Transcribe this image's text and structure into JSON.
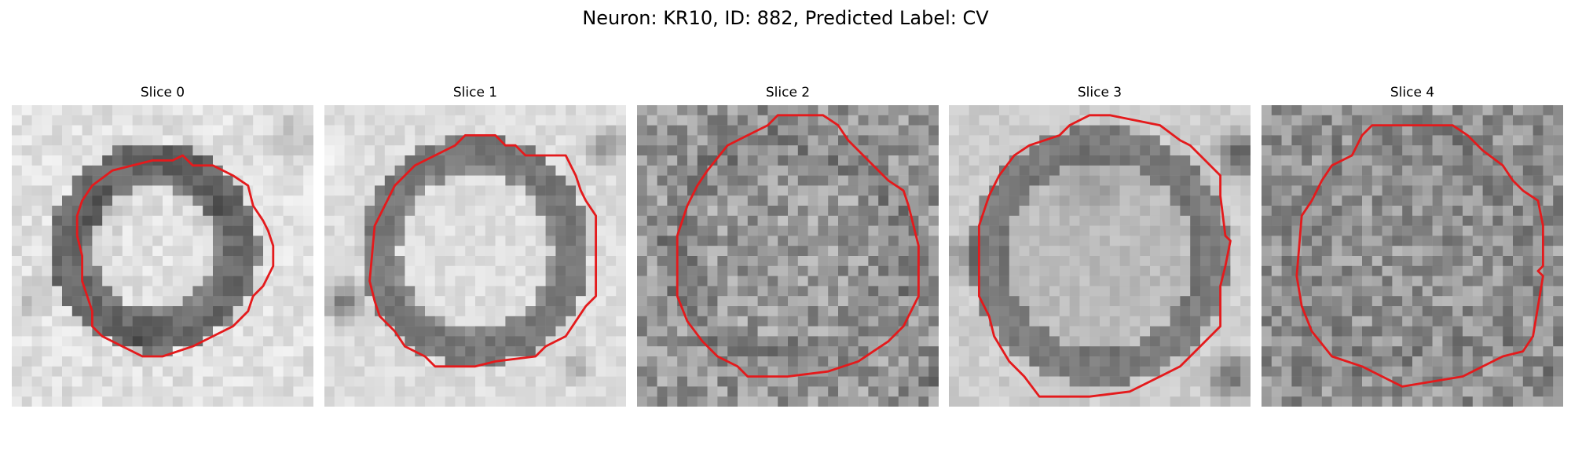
{
  "figure": {
    "title": "Neuron: KR10, ID: 882, Predicted Label: CV"
  },
  "colors": {
    "contour": "#e41a1c",
    "background": "#ffffff",
    "colormap": "grayscale"
  },
  "panels": [
    {
      "title": "Slice 0"
    },
    {
      "title": "Slice 1"
    },
    {
      "title": "Slice 2"
    },
    {
      "title": "Slice 3"
    },
    {
      "title": "Slice 4"
    }
  ]
}
